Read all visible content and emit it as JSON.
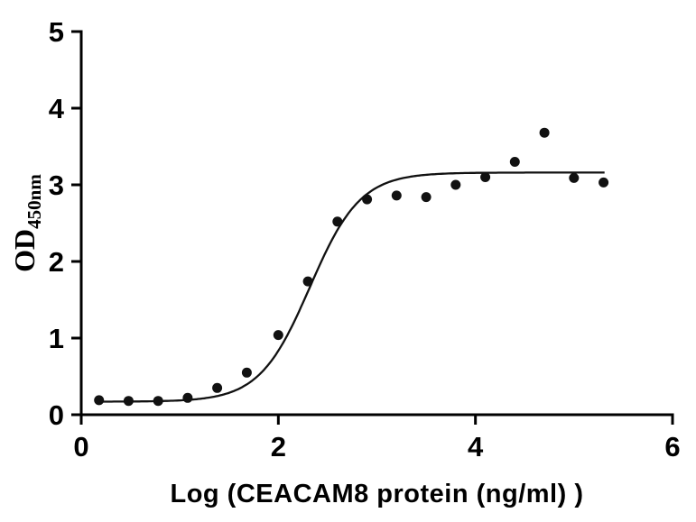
{
  "chart_data": {
    "type": "scatter",
    "title": "",
    "xlabel": "Log (CEACAM8 protein (ng/ml) )",
    "ylabel_main": "OD",
    "ylabel_sub": "450nm",
    "xlim": [
      0,
      6
    ],
    "ylim": [
      0,
      5
    ],
    "xticks": [
      0,
      2,
      4,
      6
    ],
    "yticks": [
      0,
      1,
      2,
      3,
      4,
      5
    ],
    "grid": false,
    "legend": false,
    "colors": {
      "axis": "#000000",
      "points": "#111111",
      "curve": "#111111",
      "background": "#ffffff"
    },
    "points": {
      "x": [
        0.18,
        0.48,
        0.78,
        1.08,
        1.38,
        1.68,
        2.0,
        2.3,
        2.6,
        2.9,
        3.2,
        3.5,
        3.8,
        4.1,
        4.4,
        4.7,
        5.0,
        5.3
      ],
      "y": [
        0.19,
        0.18,
        0.18,
        0.22,
        0.35,
        0.55,
        1.04,
        1.74,
        2.52,
        2.81,
        2.86,
        2.84,
        3.0,
        3.1,
        3.3,
        3.68,
        3.09,
        3.03
      ]
    },
    "fit_curve": {
      "model": "4PL-sigmoid",
      "bottom": 0.17,
      "top": 3.16,
      "log_ec50": 2.32,
      "hill": 1.7,
      "x_start": 0.15,
      "x_end": 5.32
    }
  }
}
